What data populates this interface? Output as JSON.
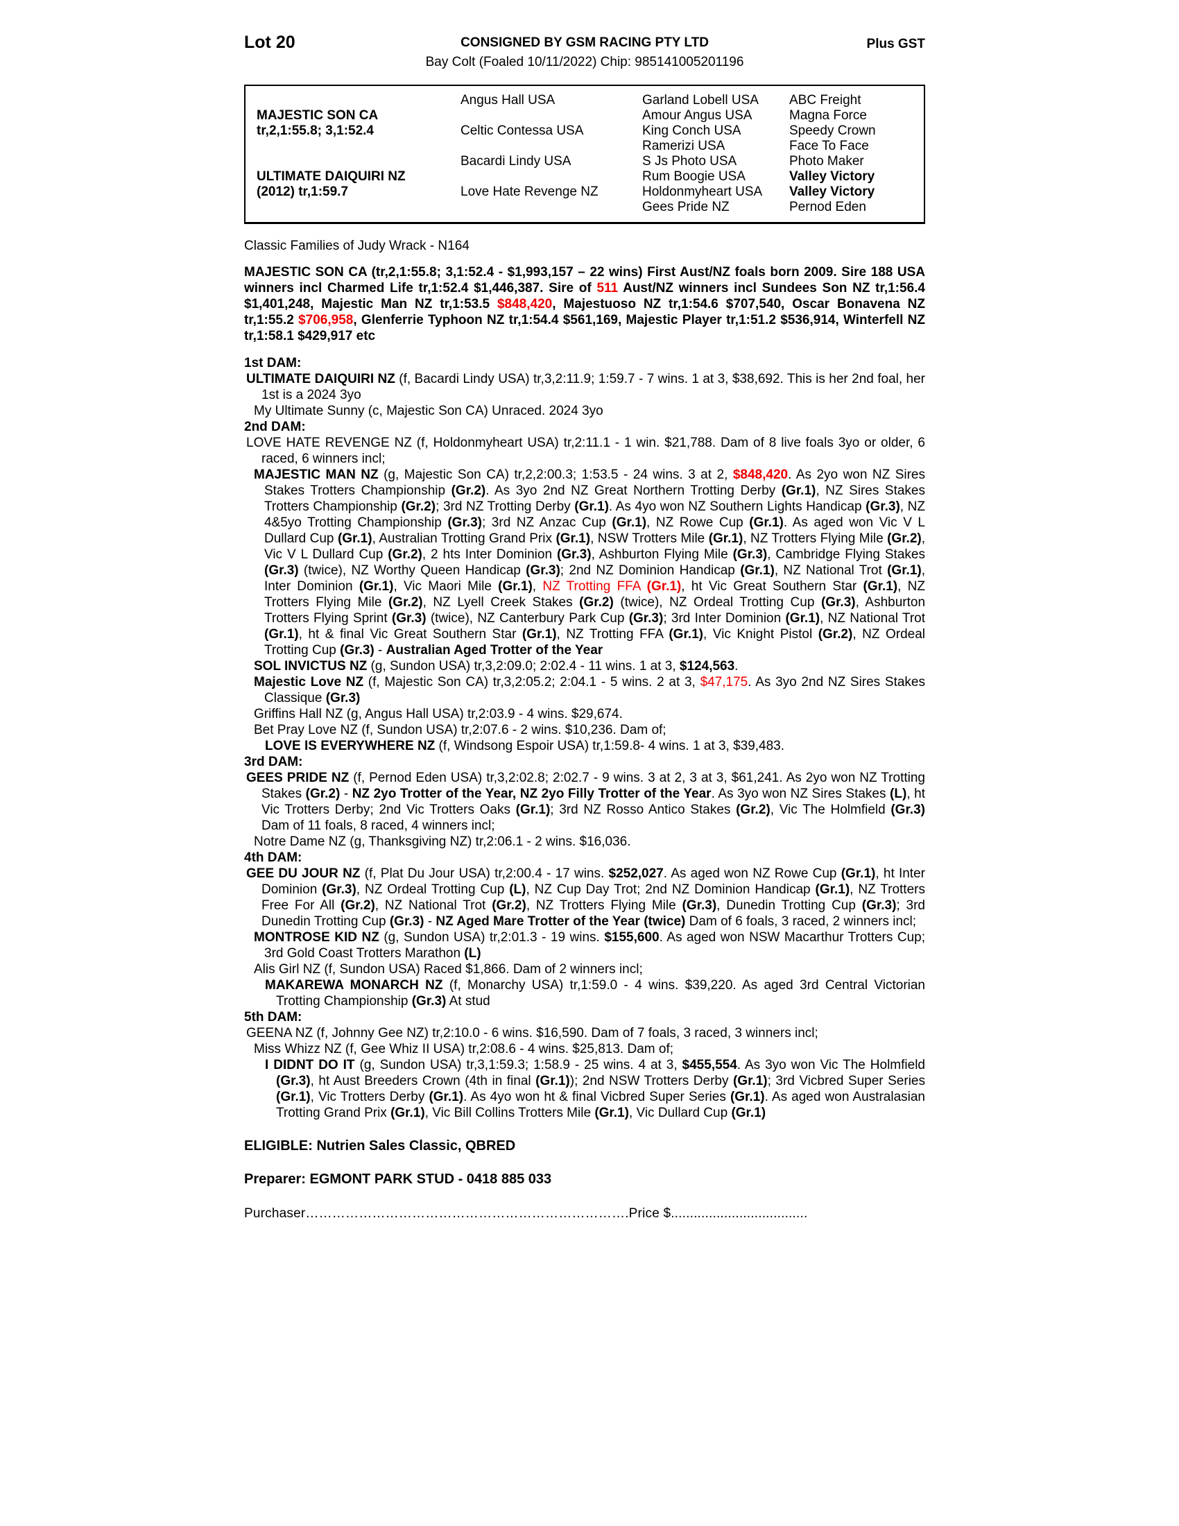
{
  "colors": {
    "highlight_red": "#ee0000"
  },
  "header": {
    "lot": "Lot 20",
    "consigned": "CONSIGNED BY GSM RACING PTY LTD",
    "gst": "Plus GST",
    "subtitle": "Bay Colt (Foaled 10/11/2022) Chip: 985141005201196"
  },
  "pedigree": {
    "rows": [
      [
        "",
        "Angus Hall USA",
        "Garland Lobell USA",
        "ABC Freight"
      ],
      [
        [
          {
            "t": "MAJESTIC SON CA",
            "b": true
          }
        ],
        "",
        "Amour Angus USA",
        "Magna Force"
      ],
      [
        [
          {
            "t": "tr,2,1:55.8; 3,1:52.4",
            "b": true
          }
        ],
        "Celtic Contessa USA",
        "King Conch USA",
        "Speedy Crown"
      ],
      [
        "",
        "",
        "Ramerizi USA",
        "Face To Face"
      ],
      [
        "",
        "Bacardi Lindy USA",
        "S Js Photo USA",
        "Photo Maker"
      ],
      [
        [
          {
            "t": "ULTIMATE DAIQUIRI NZ",
            "b": true
          }
        ],
        "",
        "Rum Boogie USA",
        [
          {
            "t": "Valley Victory",
            "b": true
          }
        ]
      ],
      [
        [
          {
            "t": "(2012) tr,1:59.7",
            "b": true
          }
        ],
        "Love Hate Revenge NZ",
        "Holdonmyheart USA",
        [
          {
            "t": "Valley Victory",
            "b": true
          }
        ]
      ],
      [
        "",
        "",
        "Gees Pride NZ",
        "Pernod Eden"
      ]
    ]
  },
  "family_line": "Classic Families of Judy Wrack - N164",
  "sire_para": [
    {
      "t": "MAJESTIC SON CA (tr,2,1:55.8; 3,1:52.4 - $1,993,157 – 22 wins) First Aust/NZ foals born 2009. Sire 188 USA winners incl Charmed Life tr,1:52.4 $1,446,387. Sire of "
    },
    {
      "t": "511",
      "r": true
    },
    {
      "t": " Aust/NZ winners incl Sundees Son NZ tr,1:56.4 $1,401,248, Majestic Man NZ tr,1:53.5 "
    },
    {
      "t": "$848,420",
      "r": true
    },
    {
      "t": ", Majestuoso NZ tr,1:54.6 $707,540, Oscar Bonavena NZ tr,1:55.2 "
    },
    {
      "t": "$706,958",
      "r": true
    },
    {
      "t": ", Glenferrie Typhoon NZ tr,1:54.4 $561,169, Majestic Player tr,1:51.2 $536,914, Winterfell NZ tr,1:58.1 $429,917 etc"
    }
  ],
  "body": [
    "1st DAM:",
    [
      {
        "t": "ULTIMATE DAIQUIRI NZ",
        "b": true
      },
      {
        "t": " (f, Bacardi Lindy USA) tr,3,2:11.9; 1:59.7 - 7 wins. 1 at 3, $38,692. This is her 2nd foal, her 1st is a 2024 3yo"
      }
    ],
    "My Ultimate Sunny (c, Majestic Son CA) Unraced. 2024 3yo",
    "2nd DAM:",
    [
      {
        "t": "LOVE HATE REVENGE NZ (f, Holdonmyheart USA) tr,2:11.1 - 1 win. $21,788. Dam of 8 live foals 3yo or older, 6 raced, 6 winners incl;"
      }
    ],
    [
      {
        "t": "MAJESTIC MAN NZ",
        "b": true
      },
      {
        "t": " (g, Majestic Son CA) tr,2,2:00.3; 1:53.5 - 24 wins. 3 at 2, "
      },
      {
        "t": "$848,420",
        "b": true,
        "r": true
      },
      {
        "t": ". As 2yo won NZ Sires Stakes Trotters Championship "
      },
      {
        "t": "(Gr.2)",
        "b": true
      },
      {
        "t": ". As 3yo 2nd NZ Great Northern Trotting Derby "
      },
      {
        "t": "(Gr.1)",
        "b": true
      },
      {
        "t": ", NZ Sires Stakes Trotters Championship "
      },
      {
        "t": "(Gr.2)",
        "b": true
      },
      {
        "t": "; 3rd NZ Trotting Derby "
      },
      {
        "t": "(Gr.1)",
        "b": true
      },
      {
        "t": ". As 4yo won NZ Southern Lights Handicap "
      },
      {
        "t": "(Gr.3)",
        "b": true
      },
      {
        "t": ", NZ 4&5yo Trotting Championship "
      },
      {
        "t": "(Gr.3)",
        "b": true
      },
      {
        "t": "; 3rd NZ Anzac Cup "
      },
      {
        "t": "(Gr.1)",
        "b": true
      },
      {
        "t": ", NZ Rowe Cup "
      },
      {
        "t": "(Gr.1)",
        "b": true
      },
      {
        "t": ". As aged won Vic V L Dullard Cup "
      },
      {
        "t": "(Gr.1)",
        "b": true
      },
      {
        "t": ", Australian Trotting Grand Prix "
      },
      {
        "t": "(Gr.1)",
        "b": true
      },
      {
        "t": ", NSW Trotters Mile "
      },
      {
        "t": "(Gr.1)",
        "b": true
      },
      {
        "t": ", NZ Trotters Flying Mile "
      },
      {
        "t": "(Gr.2)",
        "b": true
      },
      {
        "t": ", Vic V L Dullard Cup "
      },
      {
        "t": "(Gr.2)",
        "b": true
      },
      {
        "t": ", 2 hts Inter Dominion "
      },
      {
        "t": "(Gr.3)",
        "b": true
      },
      {
        "t": ", Ashburton Flying Mile "
      },
      {
        "t": "(Gr.3)",
        "b": true
      },
      {
        "t": ", Cambridge Flying Stakes "
      },
      {
        "t": "(Gr.3)",
        "b": true
      },
      {
        "t": " (twice), NZ Worthy Queen Handicap "
      },
      {
        "t": "(Gr.3)",
        "b": true
      },
      {
        "t": "; 2nd NZ Dominion Handicap "
      },
      {
        "t": "(Gr.1)",
        "b": true
      },
      {
        "t": ", NZ National Trot "
      },
      {
        "t": "(Gr.1)",
        "b": true
      },
      {
        "t": ", Inter Dominion "
      },
      {
        "t": "(Gr.1)",
        "b": true
      },
      {
        "t": ", Vic Maori Mile "
      },
      {
        "t": "(Gr.1)",
        "b": true
      },
      {
        "t": ", "
      },
      {
        "t": "NZ Trotting FFA ",
        "r": true
      },
      {
        "t": "(Gr.1)",
        "b": true,
        "r": true
      },
      {
        "t": ", ht Vic Great Southern Star "
      },
      {
        "t": "(Gr.1)",
        "b": true
      },
      {
        "t": ", NZ Trotters Flying Mile "
      },
      {
        "t": "(Gr.2)",
        "b": true
      },
      {
        "t": ", NZ Lyell Creek Stakes "
      },
      {
        "t": "(Gr.2)",
        "b": true
      },
      {
        "t": " (twice), NZ Ordeal Trotting Cup "
      },
      {
        "t": "(Gr.3)",
        "b": true
      },
      {
        "t": ", Ashburton Trotters Flying Sprint "
      },
      {
        "t": "(Gr.3)",
        "b": true
      },
      {
        "t": " (twice), NZ Canterbury Park Cup "
      },
      {
        "t": "(Gr.3)",
        "b": true
      },
      {
        "t": "; 3rd Inter Dominion "
      },
      {
        "t": "(Gr.1)",
        "b": true
      },
      {
        "t": ", NZ National Trot "
      },
      {
        "t": "(Gr.1)",
        "b": true
      },
      {
        "t": ", ht & final Vic Great Southern Star "
      },
      {
        "t": "(Gr.1)",
        "b": true
      },
      {
        "t": ", NZ Trotting FFA "
      },
      {
        "t": "(Gr.1)",
        "b": true
      },
      {
        "t": ", Vic Knight Pistol "
      },
      {
        "t": "(Gr.2)",
        "b": true
      },
      {
        "t": ", NZ Ordeal Trotting Cup "
      },
      {
        "t": "(Gr.3)",
        "b": true
      },
      {
        "t": " - "
      },
      {
        "t": "Australian Aged Trotter of the Year",
        "b": true
      }
    ],
    [
      {
        "t": "SOL INVICTUS NZ",
        "b": true
      },
      {
        "t": " (g, Sundon USA) tr,3,2:09.0; 2:02.4 - 11 wins. 1 at 3, "
      },
      {
        "t": "$124,563",
        "b": true
      },
      {
        "t": "."
      }
    ],
    [
      {
        "t": "Majestic Love NZ",
        "b": true
      },
      {
        "t": " (f, Majestic Son CA) tr,3,2:05.2; 2:04.1 - 5 wins. 2 at 3, "
      },
      {
        "t": "$47,175",
        "r": true
      },
      {
        "t": ". As 3yo 2nd NZ Sires Stakes Classique "
      },
      {
        "t": "(Gr.3)",
        "b": true
      }
    ],
    "Griffins Hall NZ (g, Angus Hall USA) tr,2:03.9 - 4 wins. $29,674.",
    "Bet Pray Love NZ (f, Sundon USA) tr,2:07.6 - 2 wins. $10,236. Dam of;",
    [
      {
        "t": "LOVE IS EVERYWHERE NZ",
        "b": true
      },
      {
        "t": " (f, Windsong Espoir USA) tr,1:59.8- 4 wins. 1 at 3, $39,483."
      }
    ],
    "3rd DAM:",
    [
      {
        "t": "GEES PRIDE NZ",
        "b": true
      },
      {
        "t": " (f, Pernod Eden USA) tr,3,2:02.8; 2:02.7 - 9 wins. 3 at 2, 3 at 3, $61,241. As 2yo won NZ Trotting Stakes "
      },
      {
        "t": "(Gr.2)",
        "b": true
      },
      {
        "t": " - "
      },
      {
        "t": "NZ 2yo Trotter of the Year, NZ 2yo Filly Trotter of the Year",
        "b": true
      },
      {
        "t": ". As 3yo won NZ Sires Stakes "
      },
      {
        "t": "(L)",
        "b": true
      },
      {
        "t": ", ht Vic Trotters Derby; 2nd Vic Trotters Oaks "
      },
      {
        "t": "(Gr.1)",
        "b": true
      },
      {
        "t": "; 3rd NZ Rosso Antico Stakes "
      },
      {
        "t": "(Gr.2)",
        "b": true
      },
      {
        "t": ", Vic The Holmfield "
      },
      {
        "t": "(Gr.3)",
        "b": true
      },
      {
        "t": " Dam of 11 foals, 8 raced, 4 winners incl;"
      }
    ],
    "Notre Dame NZ (g, Thanksgiving NZ) tr,2:06.1 - 2 wins. $16,036.",
    "4th DAM:",
    [
      {
        "t": "GEE DU JOUR NZ",
        "b": true
      },
      {
        "t": " (f, Plat Du Jour USA) tr,2:00.4 - 17 wins. "
      },
      {
        "t": "$252,027",
        "b": true
      },
      {
        "t": ". As aged won NZ Rowe Cup "
      },
      {
        "t": "(Gr.1)",
        "b": true
      },
      {
        "t": ", ht Inter Dominion "
      },
      {
        "t": "(Gr.3)",
        "b": true
      },
      {
        "t": ", NZ Ordeal Trotting Cup "
      },
      {
        "t": "(L)",
        "b": true
      },
      {
        "t": ", NZ Cup Day Trot; 2nd NZ Dominion Handicap "
      },
      {
        "t": "(Gr.1)",
        "b": true
      },
      {
        "t": ", NZ Trotters Free For All "
      },
      {
        "t": "(Gr.2)",
        "b": true
      },
      {
        "t": ", NZ National Trot "
      },
      {
        "t": "(Gr.2)",
        "b": true
      },
      {
        "t": ", NZ Trotters Flying Mile "
      },
      {
        "t": "(Gr.3)",
        "b": true
      },
      {
        "t": ", Dunedin Trotting Cup "
      },
      {
        "t": "(Gr.3)",
        "b": true
      },
      {
        "t": "; 3rd Dunedin Trotting Cup "
      },
      {
        "t": "(Gr.3)",
        "b": true
      },
      {
        "t": " - "
      },
      {
        "t": "NZ Aged Mare Trotter of the Year (twice)",
        "b": true
      },
      {
        "t": " Dam of 6 foals, 3 raced, 2 winners incl;"
      }
    ],
    [
      {
        "t": "MONTROSE KID NZ",
        "b": true
      },
      {
        "t": " (g, Sundon USA) tr,2:01.3 - 19 wins. "
      },
      {
        "t": "$155,600",
        "b": true
      },
      {
        "t": ". As aged won NSW Macarthur Trotters Cup; 3rd Gold Coast Trotters Marathon "
      },
      {
        "t": "(L)",
        "b": true
      }
    ],
    "Alis Girl NZ (f, Sundon USA) Raced $1,866. Dam of 2 winners incl;",
    [
      {
        "t": "MAKAREWA MONARCH NZ",
        "b": true
      },
      {
        "t": " (f, Monarchy USA) tr,1:59.0 - 4 wins. $39,220. As aged 3rd Central Victorian Trotting Championship "
      },
      {
        "t": "(Gr.3)",
        "b": true
      },
      {
        "t": " At stud"
      }
    ],
    "5th DAM:",
    "GEENA NZ (f, Johnny Gee NZ) tr,2:10.0 - 6 wins. $16,590. Dam of 7 foals, 3 raced, 3 winners incl;",
    "Miss Whizz NZ (f, Gee Whiz II USA) tr,2:08.6 - 4 wins. $25,813. Dam of;",
    [
      {
        "t": "I DIDNT DO IT",
        "b": true
      },
      {
        "t": " (g, Sundon USA) tr,3,1:59.3; 1:58.9 - 25 wins. 4 at 3, "
      },
      {
        "t": "$455,554",
        "b": true
      },
      {
        "t": ". As 3yo won Vic The Holmfield "
      },
      {
        "t": "(Gr.3)",
        "b": true
      },
      {
        "t": ", ht Aust Breeders Crown (4th in final "
      },
      {
        "t": "(Gr.1)",
        "b": true
      },
      {
        "t": "); 2nd NSW Trotters Derby "
      },
      {
        "t": "(Gr.1)",
        "b": true
      },
      {
        "t": "; 3rd Vicbred Super Series "
      },
      {
        "t": "(Gr.1)",
        "b": true
      },
      {
        "t": ", Vic Trotters Derby "
      },
      {
        "t": "(Gr.1)",
        "b": true
      },
      {
        "t": ". As 4yo won ht & final Vicbred Super Series "
      },
      {
        "t": "(Gr.1)",
        "b": true
      },
      {
        "t": ". As aged won Australasian Trotting Grand Prix "
      },
      {
        "t": "(Gr.1)",
        "b": true
      },
      {
        "t": ", Vic Bill Collins Trotters Mile "
      },
      {
        "t": "(Gr.1)",
        "b": true
      },
      {
        "t": ", Vic Dullard Cup "
      },
      {
        "t": "(Gr.1)",
        "b": true
      }
    ]
  ],
  "footer": {
    "eligible": "ELIGIBLE: Nutrien Sales Classic, QBRED",
    "preparer": "Preparer: EGMONT PARK STUD - 0418 885 033",
    "purchaser_line": "Purchaser……………………………………………………………….Price $...................................."
  }
}
